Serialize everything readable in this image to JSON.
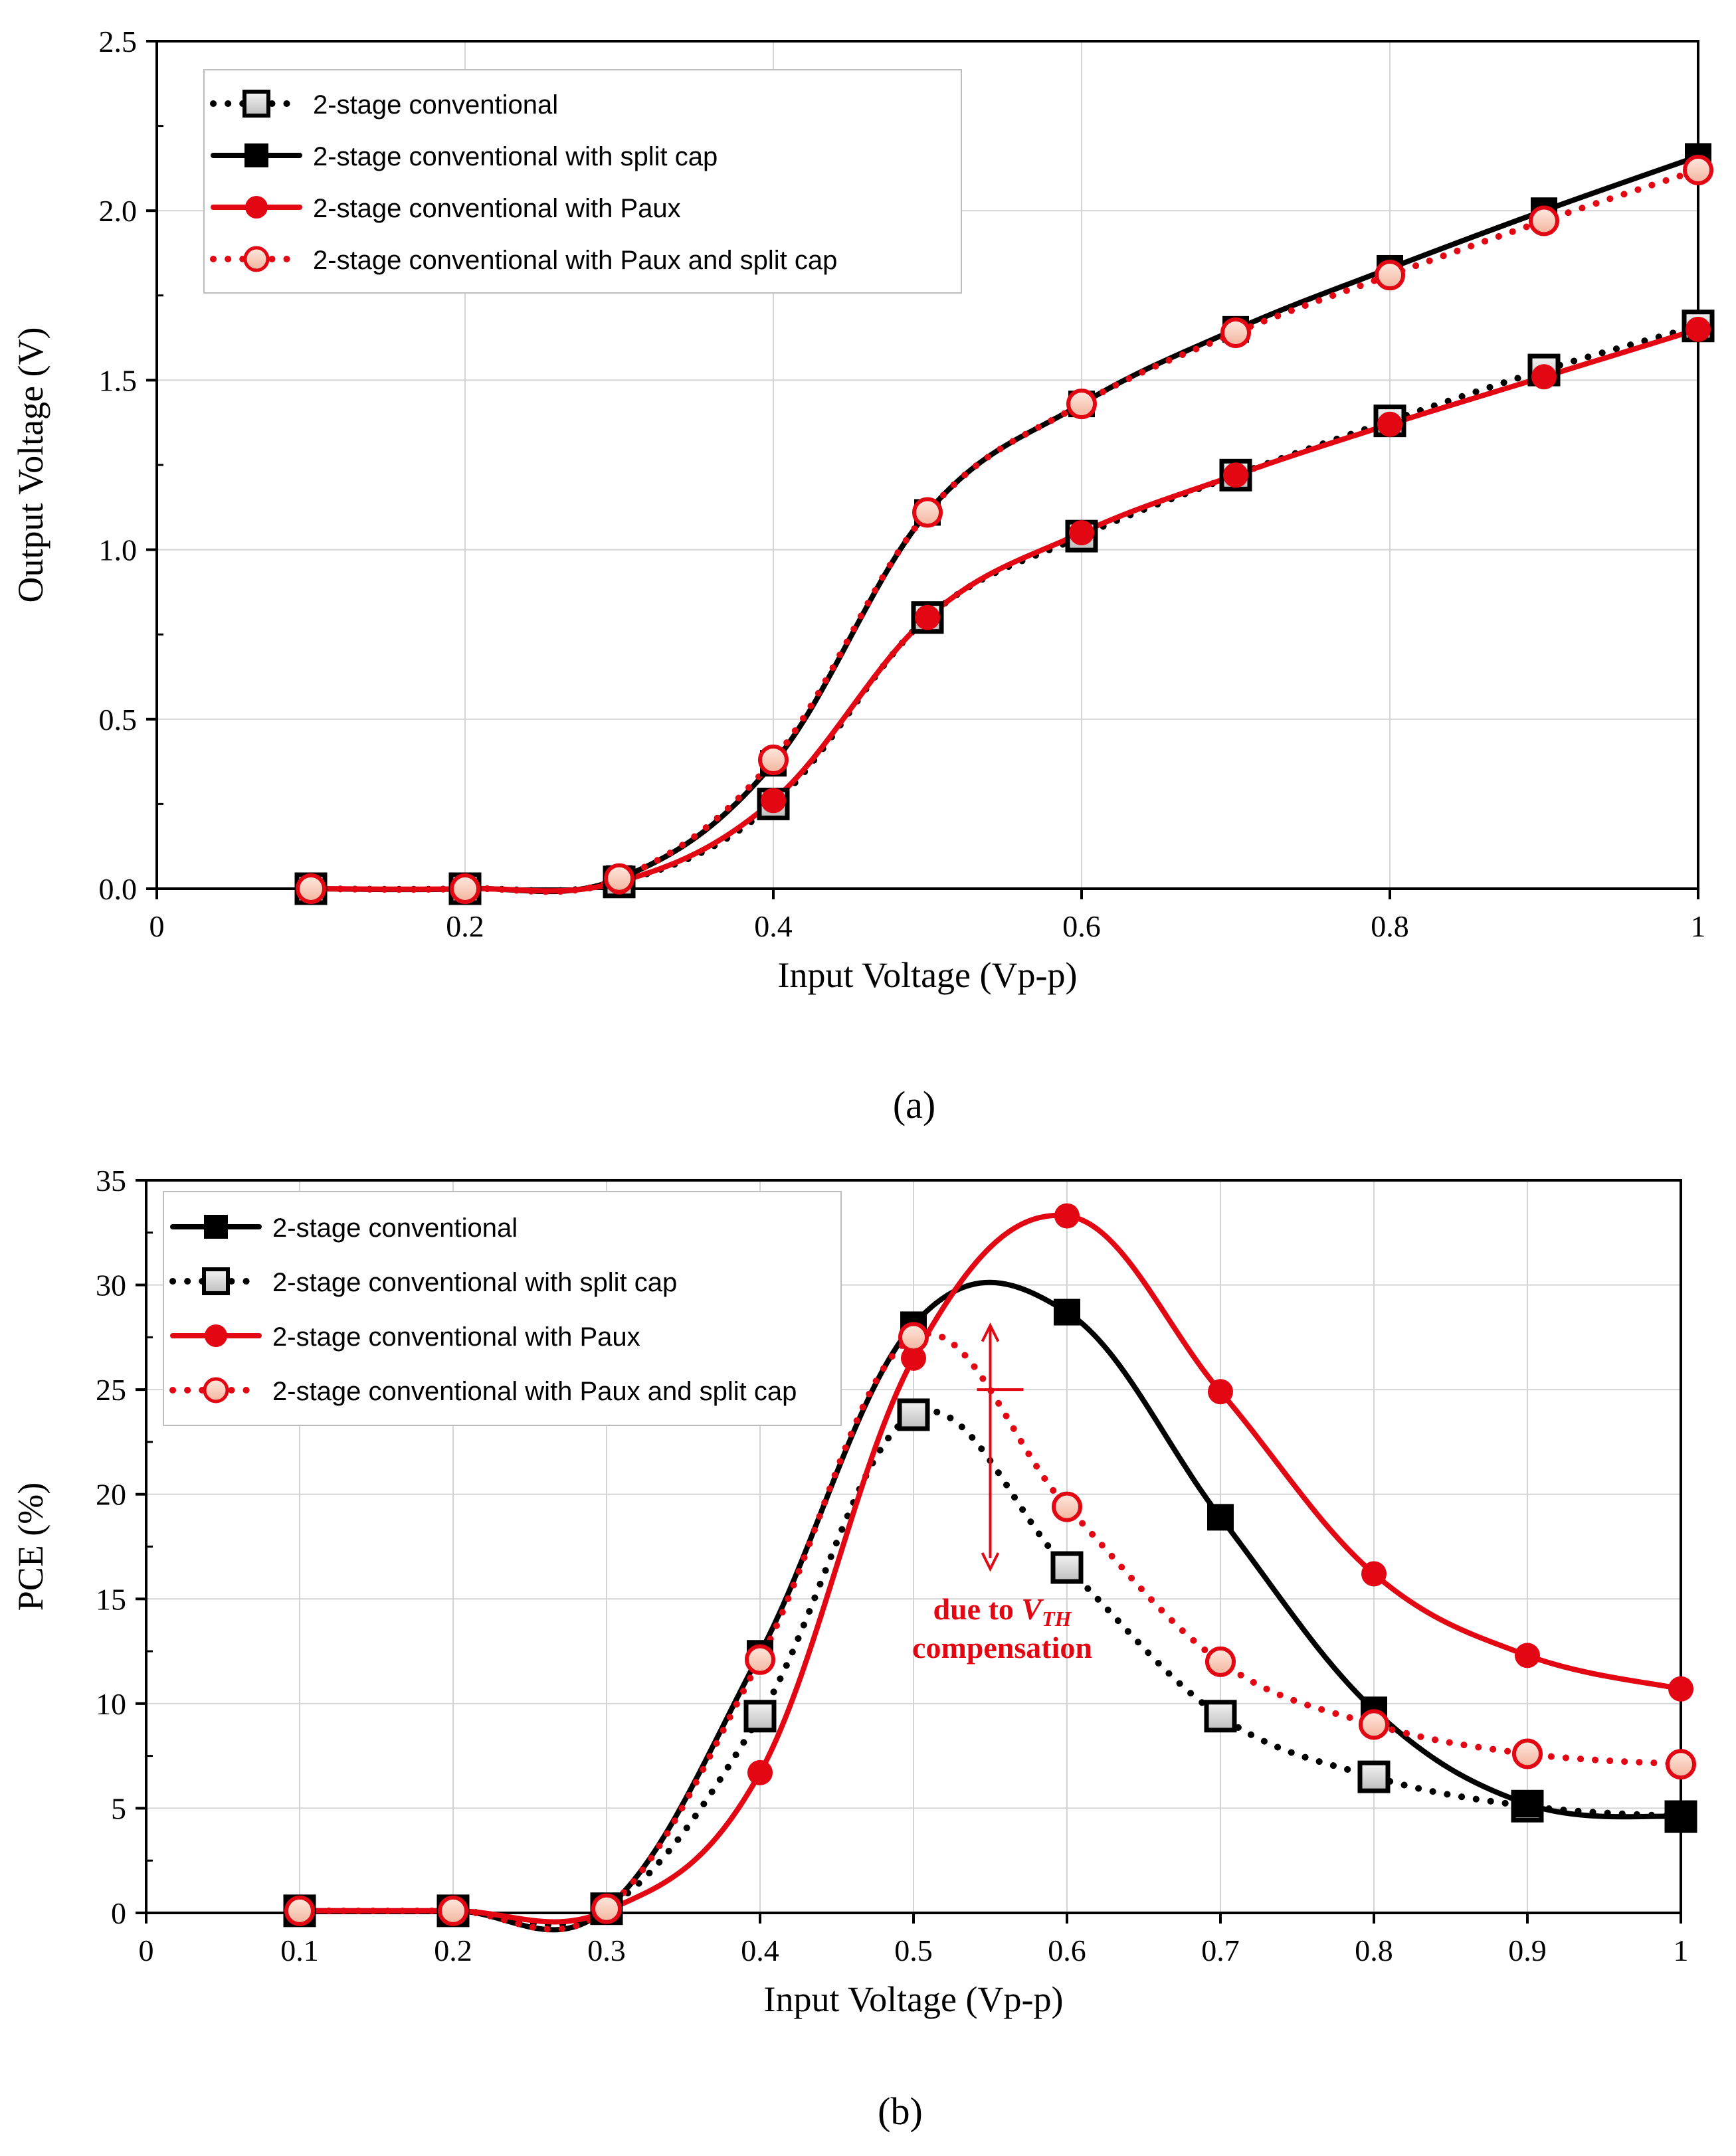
{
  "chart_data": [
    {
      "id": "a",
      "type": "line",
      "caption": "(a)",
      "xlabel": "Input Voltage (Vp-p)",
      "ylabel": "Output Voltage (V)",
      "xlim": [
        0,
        1
      ],
      "ylim": [
        0,
        2.5
      ],
      "xticks": [
        "0",
        "0.2",
        "0.4",
        "0.6",
        "0.8",
        "1"
      ],
      "yticks": [
        "0.0",
        "0.5",
        "1.0",
        "1.5",
        "2.0",
        "2.5"
      ],
      "grid": true,
      "legend_position": "top-left",
      "x": [
        0.1,
        0.2,
        0.3,
        0.4,
        0.5,
        0.6,
        0.7,
        0.8,
        0.9,
        1.0
      ],
      "series": [
        {
          "name": "2-stage conventional",
          "color": "#000000",
          "line": "dotted",
          "marker": "open-square",
          "values": [
            0,
            0,
            0.02,
            0.25,
            0.8,
            1.04,
            1.22,
            1.38,
            1.53,
            1.66
          ]
        },
        {
          "name": "2-stage conventional with split cap",
          "color": "#000000",
          "line": "solid",
          "marker": "filled-square",
          "values": [
            0,
            0,
            0.03,
            0.37,
            1.11,
            1.43,
            1.65,
            1.83,
            2.0,
            2.16
          ]
        },
        {
          "name": "2-stage conventional with Paux",
          "color": "#e30613",
          "line": "solid",
          "marker": "filled-circle",
          "values": [
            0,
            0,
            0.02,
            0.26,
            0.8,
            1.05,
            1.22,
            1.37,
            1.51,
            1.65
          ]
        },
        {
          "name": "2-stage conventional with Paux and split cap",
          "color": "#e30613",
          "line": "dotted",
          "marker": "open-circle",
          "values": [
            0,
            0,
            0.03,
            0.38,
            1.11,
            1.43,
            1.64,
            1.81,
            1.97,
            2.12
          ]
        }
      ]
    },
    {
      "id": "b",
      "type": "line",
      "caption": "(b)",
      "xlabel": "Input Voltage (Vp-p)",
      "ylabel": "PCE (%)",
      "xlim": [
        0,
        1
      ],
      "ylim": [
        0,
        35
      ],
      "xticks": [
        "0",
        "0.1",
        "0.2",
        "0.3",
        "0.4",
        "0.5",
        "0.6",
        "0.7",
        "0.8",
        "0.9",
        "1"
      ],
      "yticks": [
        "0",
        "5",
        "10",
        "15",
        "20",
        "25",
        "30",
        "35"
      ],
      "grid": true,
      "legend_position": "top-left",
      "annotation": {
        "text_line1": "due to ",
        "text_sub_v": "V",
        "text_sub_th": "TH",
        "text_line2": "compensation",
        "x": 0.55,
        "y_from": 28.0,
        "y_to": 16.5
      },
      "x": [
        0.1,
        0.2,
        0.3,
        0.4,
        0.5,
        0.6,
        0.7,
        0.8,
        0.9,
        1.0
      ],
      "series": [
        {
          "name": "2-stage conventional",
          "color": "#000000",
          "line": "solid",
          "marker": "filled-square",
          "values": [
            0.1,
            0.1,
            0.2,
            12.4,
            28.1,
            28.7,
            18.9,
            9.7,
            5.2,
            4.6
          ]
        },
        {
          "name": "2-stage conventional with split cap",
          "color": "#000000",
          "line": "dotted",
          "marker": "open-square",
          "values": [
            0.1,
            0.1,
            0.2,
            9.4,
            23.8,
            16.5,
            9.4,
            6.5,
            5.1,
            4.6
          ]
        },
        {
          "name": "2-stage conventional with Paux",
          "color": "#e30613",
          "line": "solid",
          "marker": "filled-circle",
          "values": [
            0.1,
            0.1,
            0.1,
            6.7,
            26.5,
            33.3,
            24.9,
            16.2,
            12.3,
            10.7
          ]
        },
        {
          "name": "2-stage conventional with Paux and split cap",
          "color": "#e30613",
          "line": "dotted",
          "marker": "open-circle",
          "values": [
            0.1,
            0.1,
            0.2,
            12.1,
            27.5,
            19.4,
            12.0,
            9.0,
            7.6,
            7.1
          ]
        }
      ]
    }
  ]
}
